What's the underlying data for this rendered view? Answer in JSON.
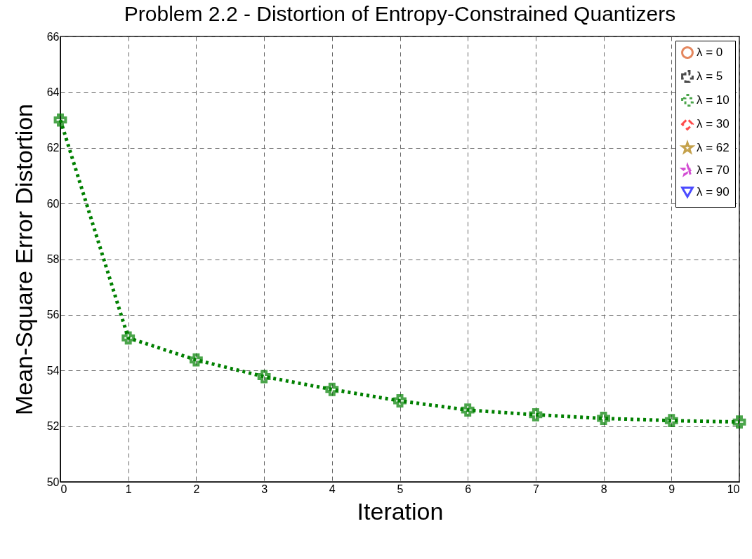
{
  "chart_data": {
    "type": "line",
    "title": "Problem 2.2 - Distortion of Entropy-Constrained Quantizers",
    "xlabel": "Iteration",
    "ylabel": "Mean-Square Error Distortion",
    "x": [
      0,
      1,
      2,
      3,
      4,
      5,
      6,
      7,
      8,
      9,
      10
    ],
    "xlim": [
      0,
      10
    ],
    "xticks": [
      0,
      1,
      2,
      3,
      4,
      5,
      6,
      7,
      8,
      9,
      10
    ],
    "ylim": [
      50,
      66
    ],
    "yticks": [
      50,
      52,
      54,
      56,
      58,
      60,
      62,
      64,
      66
    ],
    "grid": true,
    "legend": "top right",
    "series": [
      {
        "name": "λ = 0",
        "color": "#d95319",
        "marker": "circle",
        "line_style": "solid",
        "values": [
          null,
          null,
          null,
          null,
          null,
          null,
          null,
          null,
          null,
          null,
          null
        ]
      },
      {
        "name": "λ = 5",
        "color": "#000000",
        "marker": "cross",
        "line_style": "dashed",
        "values": [
          null,
          null,
          null,
          null,
          null,
          null,
          null,
          null,
          null,
          null,
          null
        ]
      },
      {
        "name": "λ = 10",
        "color": "#008000",
        "marker": "cross",
        "line_style": "dotted",
        "values": [
          63.0,
          55.17,
          54.38,
          53.78,
          53.32,
          52.91,
          52.58,
          52.41,
          52.28,
          52.2,
          52.15
        ]
      },
      {
        "name": "λ = 30",
        "color": "#ff0000",
        "marker": "diamond",
        "line_style": "dashed",
        "values": [
          null,
          null,
          null,
          null,
          null,
          null,
          null,
          null,
          null,
          null,
          null
        ]
      },
      {
        "name": "λ = 62",
        "color": "#ac7a00",
        "marker": "star",
        "line_style": "solid",
        "values": [
          null,
          null,
          null,
          null,
          null,
          null,
          null,
          null,
          null,
          null,
          null
        ]
      },
      {
        "name": "λ = 70",
        "color": "#bf00bf",
        "marker": "star",
        "line_style": "dashed",
        "values": [
          null,
          null,
          null,
          null,
          null,
          null,
          null,
          null,
          null,
          null,
          null
        ]
      },
      {
        "name": "λ = 90",
        "color": "#0000ff",
        "marker": "triangle",
        "line_style": "solid",
        "values": [
          null,
          null,
          null,
          null,
          null,
          null,
          null,
          null,
          null,
          null,
          null
        ]
      }
    ]
  }
}
